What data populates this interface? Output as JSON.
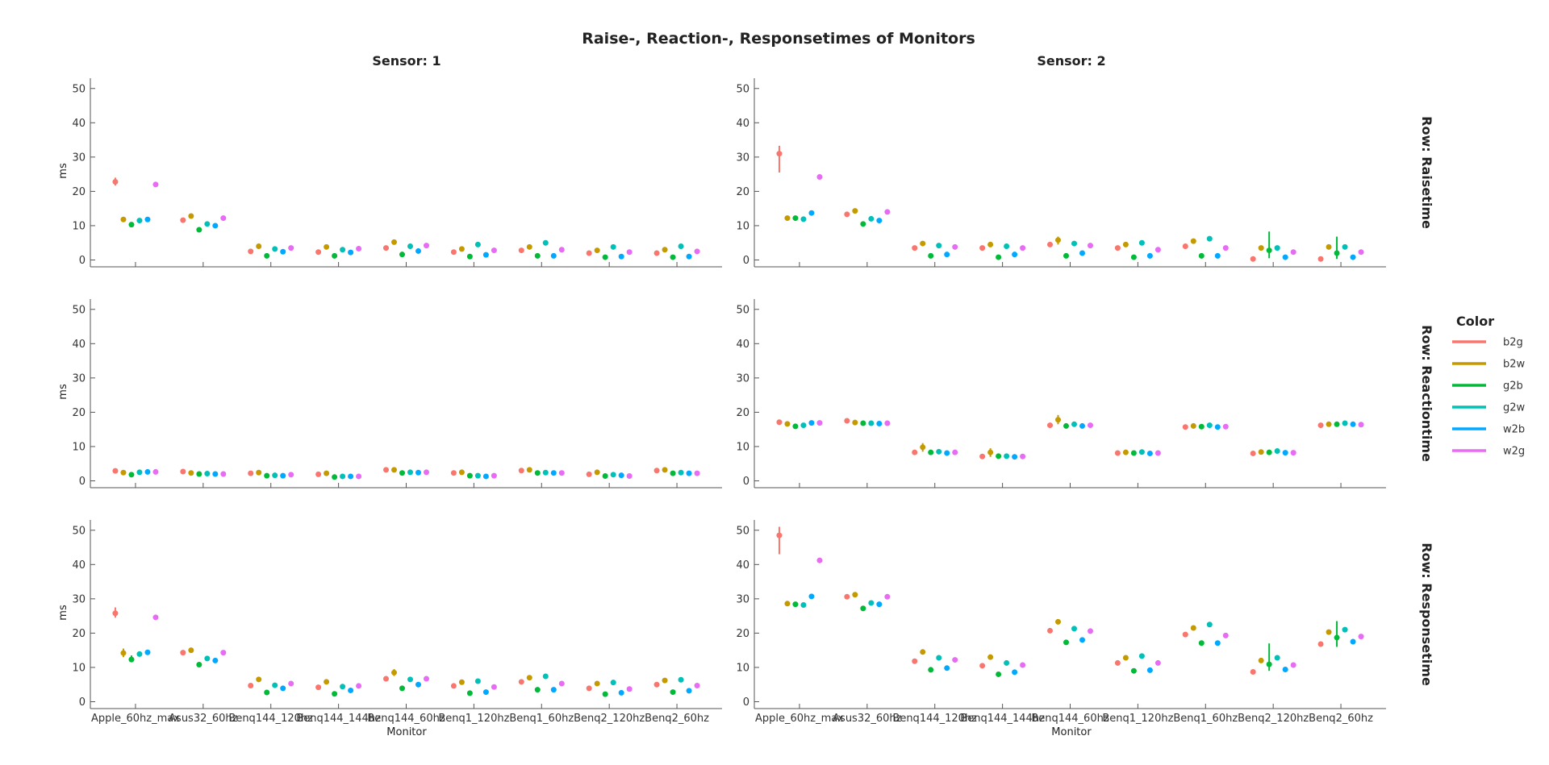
{
  "chart_data": {
    "type": "scatter",
    "title": "Raise-, Reaction-, Responsetimes of Monitors",
    "xlabel": "Monitor",
    "ylabel": "ms",
    "ylim": [
      -2,
      53
    ],
    "yticks": [
      0,
      10,
      20,
      30,
      40,
      50
    ],
    "grid": false,
    "legend": {
      "title": "Color",
      "placement": "right"
    },
    "col_titles": [
      "Sensor: 1",
      "Sensor: 2"
    ],
    "row_titles": [
      "Row: Raisetime",
      "Row: Reactiontime",
      "Row: Responsetime"
    ],
    "categories": [
      "Apple_60hz_max",
      "Asus32_60hz",
      "Benq144_120hz",
      "Benq144_144hz",
      "Benq144_60hz",
      "Benq1_120hz",
      "Benq1_60hz",
      "Benq2_120hz",
      "Benq2_60hz"
    ],
    "series": [
      {
        "name": "b2g",
        "color": "#f8766d"
      },
      {
        "name": "b2w",
        "color": "#c49a00"
      },
      {
        "name": "g2b",
        "color": "#00ba38"
      },
      {
        "name": "g2w",
        "color": "#00c0b8"
      },
      {
        "name": "w2b",
        "color": "#00a9ff"
      },
      {
        "name": "w2g",
        "color": "#e76bf3"
      }
    ],
    "panels": [
      {
        "row": "Raisetime",
        "sensor": "1",
        "values": [
          [
            22.8,
            11.8,
            10.3,
            11.5,
            11.8,
            22.0
          ],
          [
            11.6,
            12.8,
            8.8,
            10.5,
            10.0,
            12.2
          ],
          [
            2.5,
            4.0,
            1.2,
            3.2,
            2.4,
            3.5
          ],
          [
            2.3,
            3.8,
            1.2,
            3.0,
            2.2,
            3.3
          ],
          [
            3.5,
            5.2,
            1.6,
            4.0,
            2.6,
            4.2
          ],
          [
            2.3,
            3.2,
            1.0,
            4.5,
            1.5,
            2.8
          ],
          [
            2.8,
            3.8,
            1.2,
            5.0,
            1.2,
            3.0
          ],
          [
            2.0,
            2.8,
            0.8,
            3.8,
            1.0,
            2.3
          ],
          [
            2.0,
            3.0,
            0.8,
            4.0,
            1.0,
            2.5
          ]
        ],
        "errors": [
          [
            [
              21.7,
              24.0
            ],
            null,
            null,
            null,
            null,
            null
          ],
          [
            null,
            null,
            null,
            null,
            null,
            null
          ],
          [
            null,
            null,
            null,
            null,
            null,
            null
          ],
          [
            null,
            null,
            null,
            null,
            null,
            null
          ],
          [
            null,
            null,
            null,
            null,
            null,
            null
          ],
          [
            null,
            null,
            null,
            null,
            null,
            null
          ],
          [
            null,
            null,
            null,
            null,
            null,
            null
          ],
          [
            null,
            null,
            null,
            null,
            null,
            null
          ],
          [
            null,
            null,
            null,
            null,
            null,
            null
          ]
        ]
      },
      {
        "row": "Raisetime",
        "sensor": "2",
        "values": [
          [
            31.0,
            12.2,
            12.2,
            11.9,
            13.7,
            24.2
          ],
          [
            13.3,
            14.3,
            10.5,
            12.0,
            11.5,
            14.0
          ],
          [
            3.5,
            4.8,
            1.2,
            4.2,
            1.6,
            3.8
          ],
          [
            3.5,
            4.5,
            0.8,
            4.0,
            1.6,
            3.5
          ],
          [
            4.5,
            5.8,
            1.2,
            4.8,
            2.0,
            4.2
          ],
          [
            3.5,
            4.5,
            0.8,
            5.0,
            1.2,
            3.0
          ],
          [
            4.0,
            5.5,
            1.2,
            6.2,
            1.2,
            3.5
          ],
          [
            0.3,
            3.5,
            2.8,
            3.5,
            0.8,
            2.3
          ],
          [
            0.3,
            3.8,
            2.0,
            3.8,
            0.8,
            2.3
          ]
        ],
        "errors": [
          [
            [
              25.5,
              33.3
            ],
            null,
            null,
            null,
            null,
            null
          ],
          [
            null,
            null,
            null,
            null,
            null,
            null
          ],
          [
            null,
            null,
            null,
            null,
            null,
            null
          ],
          [
            null,
            [
              3.8,
              5.3
            ],
            null,
            null,
            null,
            null
          ],
          [
            null,
            [
              4.5,
              6.8
            ],
            null,
            null,
            null,
            null
          ],
          [
            null,
            null,
            null,
            null,
            null,
            null
          ],
          [
            null,
            null,
            null,
            null,
            null,
            null
          ],
          [
            null,
            null,
            [
              0.5,
              8.3
            ],
            null,
            null,
            null
          ],
          [
            null,
            null,
            [
              0.3,
              6.8
            ],
            null,
            null,
            null
          ]
        ]
      },
      {
        "row": "Reactiontime",
        "sensor": "1",
        "values": [
          [
            2.9,
            2.4,
            1.8,
            2.5,
            2.6,
            2.6
          ],
          [
            2.7,
            2.3,
            2.0,
            2.1,
            2.0,
            2.0
          ],
          [
            2.2,
            2.4,
            1.5,
            1.6,
            1.5,
            1.8
          ],
          [
            1.9,
            2.2,
            1.1,
            1.3,
            1.3,
            1.3
          ],
          [
            3.2,
            3.2,
            2.3,
            2.5,
            2.4,
            2.5
          ],
          [
            2.3,
            2.5,
            1.5,
            1.5,
            1.3,
            1.5
          ],
          [
            3.0,
            3.2,
            2.3,
            2.4,
            2.3,
            2.3
          ],
          [
            1.9,
            2.5,
            1.4,
            1.8,
            1.6,
            1.4
          ],
          [
            3.0,
            3.2,
            2.2,
            2.4,
            2.2,
            2.2
          ]
        ],
        "errors": [
          [
            null,
            null,
            null,
            null,
            null,
            null
          ],
          [
            null,
            null,
            null,
            null,
            null,
            null
          ],
          [
            null,
            null,
            null,
            null,
            null,
            null
          ],
          [
            null,
            null,
            null,
            null,
            null,
            null
          ],
          [
            null,
            null,
            null,
            null,
            null,
            null
          ],
          [
            null,
            null,
            null,
            null,
            null,
            null
          ],
          [
            null,
            null,
            null,
            null,
            null,
            null
          ],
          [
            null,
            null,
            null,
            null,
            null,
            null
          ],
          [
            null,
            null,
            null,
            null,
            null,
            null
          ]
        ]
      },
      {
        "row": "Reactiontime",
        "sensor": "2",
        "values": [
          [
            17.1,
            16.6,
            15.9,
            16.2,
            16.9,
            16.9
          ],
          [
            17.5,
            17.0,
            16.8,
            16.8,
            16.7,
            16.8
          ],
          [
            8.3,
            9.8,
            8.3,
            8.5,
            8.1,
            8.3
          ],
          [
            7.1,
            8.3,
            7.2,
            7.2,
            7.0,
            7.1
          ],
          [
            16.2,
            17.8,
            16.0,
            16.5,
            16.0,
            16.2
          ],
          [
            8.1,
            8.3,
            8.1,
            8.4,
            8.0,
            8.1
          ],
          [
            15.7,
            16.0,
            15.8,
            16.2,
            15.7,
            15.8
          ],
          [
            8.0,
            8.4,
            8.3,
            8.7,
            8.2,
            8.2
          ],
          [
            16.2,
            16.5,
            16.5,
            16.8,
            16.5,
            16.4
          ]
        ],
        "errors": [
          [
            null,
            null,
            null,
            null,
            null,
            null
          ],
          [
            null,
            null,
            null,
            null,
            null,
            null
          ],
          [
            null,
            [
              8.5,
              11.0
            ],
            null,
            null,
            null,
            null
          ],
          [
            null,
            [
              7.0,
              9.5
            ],
            null,
            null,
            null,
            null
          ],
          [
            null,
            [
              16.5,
              19.2
            ],
            null,
            null,
            null,
            null
          ],
          [
            null,
            null,
            null,
            null,
            null,
            null
          ],
          [
            null,
            null,
            null,
            null,
            null,
            null
          ],
          [
            null,
            null,
            null,
            null,
            null,
            null
          ],
          [
            null,
            null,
            null,
            null,
            null,
            null
          ]
        ]
      },
      {
        "row": "Responsetime",
        "sensor": "1",
        "values": [
          [
            25.8,
            14.2,
            12.3,
            13.9,
            14.4,
            24.6
          ],
          [
            14.3,
            15.0,
            10.8,
            12.6,
            12.0,
            14.3
          ],
          [
            4.7,
            6.5,
            2.7,
            4.8,
            3.9,
            5.3
          ],
          [
            4.2,
            5.8,
            2.3,
            4.4,
            3.3,
            4.6
          ],
          [
            6.7,
            8.5,
            3.9,
            6.5,
            5.0,
            6.7
          ],
          [
            4.6,
            5.7,
            2.5,
            6.0,
            2.8,
            4.3
          ],
          [
            5.8,
            7.0,
            3.5,
            7.4,
            3.5,
            5.3
          ],
          [
            3.9,
            5.3,
            2.2,
            5.6,
            2.6,
            3.7
          ],
          [
            5.0,
            6.2,
            2.8,
            6.4,
            3.2,
            4.7
          ]
        ],
        "errors": [
          [
            [
              24.5,
              27.5
            ],
            [
              13.0,
              15.5
            ],
            [
              11.5,
              13.5
            ],
            null,
            null,
            null
          ],
          [
            null,
            null,
            null,
            null,
            null,
            null
          ],
          [
            null,
            null,
            null,
            null,
            null,
            null
          ],
          [
            null,
            null,
            null,
            null,
            null,
            null
          ],
          [
            null,
            [
              7.5,
              9.5
            ],
            null,
            null,
            null,
            null
          ],
          [
            null,
            null,
            null,
            null,
            null,
            null
          ],
          [
            null,
            null,
            null,
            null,
            null,
            null
          ],
          [
            null,
            null,
            null,
            null,
            null,
            null
          ],
          [
            null,
            null,
            null,
            null,
            null,
            null
          ]
        ]
      },
      {
        "row": "Responsetime",
        "sensor": "2",
        "values": [
          [
            48.5,
            28.6,
            28.4,
            28.2,
            30.7,
            41.2
          ],
          [
            30.6,
            31.2,
            27.2,
            28.8,
            28.4,
            30.6
          ],
          [
            11.8,
            14.5,
            9.3,
            12.8,
            9.8,
            12.2
          ],
          [
            10.5,
            13.0,
            8.0,
            11.3,
            8.6,
            10.7
          ],
          [
            20.7,
            23.3,
            17.3,
            21.3,
            18.0,
            20.6
          ],
          [
            11.3,
            12.8,
            9.0,
            13.3,
            9.2,
            11.3
          ],
          [
            19.6,
            21.5,
            17.1,
            22.5,
            17.1,
            19.3
          ],
          [
            8.7,
            12.0,
            10.9,
            12.8,
            9.4,
            10.7
          ],
          [
            16.8,
            20.3,
            18.7,
            21.0,
            17.5,
            19.0
          ]
        ],
        "errors": [
          [
            [
              43.0,
              51.0
            ],
            null,
            null,
            null,
            null,
            [
              40.5,
              42.0
            ]
          ],
          [
            null,
            null,
            null,
            null,
            null,
            null
          ],
          [
            null,
            null,
            null,
            null,
            null,
            null
          ],
          [
            null,
            null,
            null,
            null,
            null,
            null
          ],
          [
            null,
            null,
            null,
            null,
            null,
            null
          ],
          [
            null,
            null,
            null,
            null,
            null,
            null
          ],
          [
            null,
            null,
            null,
            null,
            null,
            null
          ],
          [
            null,
            null,
            [
              9.0,
              17.0
            ],
            null,
            null,
            null
          ],
          [
            null,
            null,
            [
              16.0,
              23.5
            ],
            null,
            null,
            null
          ]
        ]
      }
    ]
  }
}
